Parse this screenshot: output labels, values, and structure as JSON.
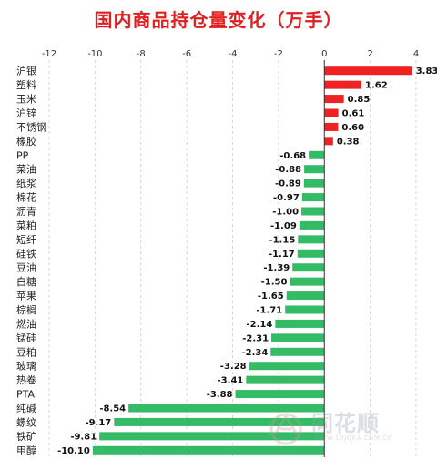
{
  "chart_data": {
    "type": "bar",
    "orientation": "horizontal",
    "title": "国内商品持仓量变化（万手）",
    "categories": [
      "沪银",
      "塑料",
      "玉米",
      "沪锌",
      "不锈钢",
      "橡胶",
      "PP",
      "菜油",
      "纸浆",
      "棉花",
      "沥青",
      "菜粕",
      "短纤",
      "硅铁",
      "豆油",
      "白糖",
      "苹果",
      "棕榈",
      "燃油",
      "锰硅",
      "豆粕",
      "玻璃",
      "热卷",
      "PTA",
      "纯碱",
      "螺纹",
      "铁矿",
      "甲醇"
    ],
    "values": [
      3.83,
      1.62,
      0.85,
      0.61,
      0.6,
      0.38,
      -0.68,
      -0.88,
      -0.89,
      -0.97,
      -1.0,
      -1.09,
      -1.15,
      -1.17,
      -1.39,
      -1.5,
      -1.65,
      -1.71,
      -2.14,
      -2.31,
      -2.34,
      -3.28,
      -3.41,
      -3.88,
      -8.54,
      -9.17,
      -9.81,
      -10.1
    ],
    "value_labels": [
      "3.83",
      "1.62",
      "0.85",
      "0.61",
      "0.60",
      "0.38",
      "-0.68",
      "-0.88",
      "-0.89",
      "-0.97",
      "-1.00",
      "-1.09",
      "-1.15",
      "-1.17",
      "-1.39",
      "-1.50",
      "-1.65",
      "-1.71",
      "-2.14",
      "-2.31",
      "-2.34",
      "-3.28",
      "-3.41",
      "-3.88",
      "-8.54",
      "-9.17",
      "-9.81",
      "-10.10"
    ],
    "xlim": [
      -12,
      4
    ],
    "xticks": [
      -12,
      -10,
      -8,
      -6,
      -4,
      -2,
      0,
      2,
      4
    ],
    "xtick_labels": [
      "-12",
      "-10",
      "-8",
      "-6",
      "-4",
      "-2",
      "0",
      "2",
      "4"
    ],
    "grid": true,
    "legend": "none",
    "colors": {
      "positive": "#ee2222",
      "negative": "#33bb66",
      "grid": "#d6d6d6",
      "axis": "#333333"
    }
  },
  "watermark": {
    "brand": "同花顺",
    "url": "WWW.10JQKA.COM.CN"
  }
}
